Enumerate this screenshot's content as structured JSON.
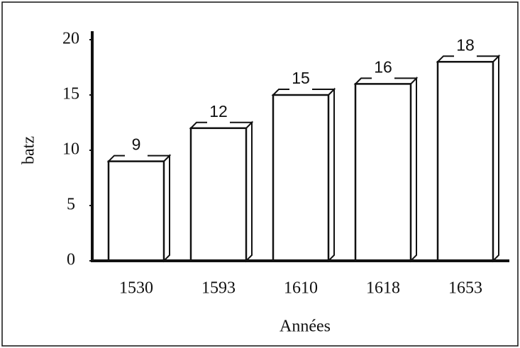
{
  "chart_data": {
    "type": "bar",
    "categories": [
      "1530",
      "1593",
      "1610",
      "1618",
      "1653"
    ],
    "values": [
      9,
      12,
      15,
      16,
      18
    ],
    "color": "#ffffff",
    "ylabel": "batz",
    "xlabel": "Années",
    "ylim": [
      0,
      20
    ],
    "yticks": [
      0,
      5,
      10,
      15,
      20
    ],
    "grid": false
  }
}
